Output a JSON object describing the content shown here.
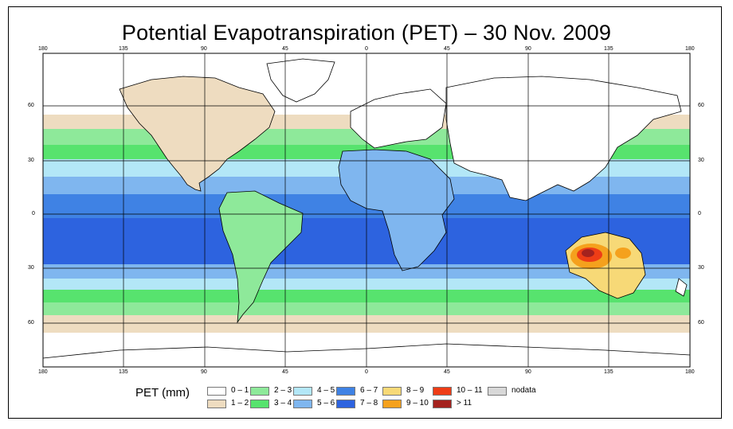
{
  "title": "Potential Evapotranspiration (PET) – 30 Nov. 2009",
  "axes": {
    "lon_ticks": [
      "180",
      "135",
      "90",
      "45",
      "0",
      "45",
      "90",
      "135",
      "180"
    ],
    "lat_ticks_left": [
      "60",
      "30",
      "0",
      "30",
      "60"
    ],
    "lat_ticks_right": [
      "60",
      "30",
      "0",
      "30",
      "60"
    ]
  },
  "legend": {
    "label": "PET (mm)",
    "items": [
      {
        "label": "0 – 1",
        "color": "#ffffff"
      },
      {
        "label": "1 – 2",
        "color": "#eedcc0"
      },
      {
        "label": "2 – 3",
        "color": "#8ee99a"
      },
      {
        "label": "3 – 4",
        "color": "#57e36e"
      },
      {
        "label": "4 – 5",
        "color": "#b3e7f7"
      },
      {
        "label": "5 – 6",
        "color": "#7fb6ef"
      },
      {
        "label": "6 – 7",
        "color": "#3f82e4"
      },
      {
        "label": "7 – 8",
        "color": "#2d63df"
      },
      {
        "label": "8 – 9",
        "color": "#f7d977"
      },
      {
        "label": "9 – 10",
        "color": "#f5a11d"
      },
      {
        "label": "10 – 11",
        "color": "#ee3d16"
      },
      {
        "label": "> 11",
        "color": "#a4221e"
      },
      {
        "label": "nodata",
        "color": "#d8d8d8"
      }
    ]
  },
  "colors": {
    "ocean_dark": "#2d63df",
    "ocean_mid": "#3f82e4",
    "land_outline": "#000000",
    "grid": "#000000"
  }
}
